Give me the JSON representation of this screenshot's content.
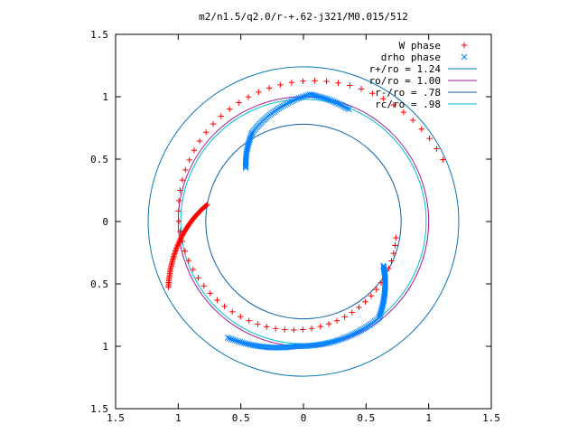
{
  "chart_data": {
    "type": "scatter",
    "title": "m2/n1.5/q2.0/r-+.62-j321/M0.015/512",
    "xlim": [
      -1.5,
      1.5
    ],
    "ylim": [
      -1.5,
      1.5
    ],
    "x_ticks": [
      -1.5,
      -1,
      -0.5,
      0,
      0.5,
      1,
      1.5
    ],
    "y_ticks": [
      -1.5,
      -1,
      -0.5,
      0,
      0.5,
      1,
      1.5
    ],
    "x_tick_labels": [
      "1.5",
      "1",
      "0.5",
      "0",
      "0.5",
      "1",
      "1.5"
    ],
    "y_tick_labels": [
      "1.5",
      "1",
      "0.5",
      "0",
      "0.5",
      "1",
      "1.5"
    ],
    "grid": false,
    "legend_position": "top-right",
    "series": [
      {
        "name": "W phase",
        "kind": "points",
        "marker": "plus",
        "color": "#ff0000",
        "arcs": [
          {
            "r_start": 0.75,
            "r_end": 1.22,
            "theta_start": 350,
            "theta_end": 24,
            "n": 70
          },
          {
            "r_start": 0.78,
            "r_end": 1.2,
            "theta_start": 170,
            "theta_end": 206,
            "n": 70
          }
        ]
      },
      {
        "name": "drho phase",
        "kind": "points",
        "marker": "cross",
        "color": "#0080ff",
        "arcs": [
          {
            "r_start": 0.63,
            "r_end": 0.82,
            "theta_start": 137,
            "theta_end": 120,
            "n": 25
          },
          {
            "r_start": 0.82,
            "r_end": 1.02,
            "theta_start": 120,
            "theta_end": 87,
            "n": 40
          },
          {
            "r_start": 1.02,
            "r_end": 0.97,
            "theta_start": 87,
            "theta_end": 68,
            "n": 25
          },
          {
            "r_start": 0.73,
            "r_end": 0.98,
            "theta_start": -29,
            "theta_end": -52,
            "n": 40
          },
          {
            "r_start": 0.98,
            "r_end": 1.0,
            "theta_start": -52,
            "theta_end": -93,
            "n": 50
          },
          {
            "r_start": 1.0,
            "r_end": 1.11,
            "theta_start": -93,
            "theta_end": -123,
            "n": 40
          }
        ]
      },
      {
        "name": "r+/ro = 1.24",
        "kind": "circle",
        "radius": 1.24,
        "color": "#0a76b6"
      },
      {
        "name": "ro/ro = 1.00",
        "kind": "circle",
        "radius": 1.0,
        "color": "#9b1a9b"
      },
      {
        "name": "r-/ro = .78",
        "kind": "circle",
        "radius": 0.78,
        "color": "#0a5ea8"
      },
      {
        "name": "rc/ro = .98",
        "kind": "circle",
        "radius": 0.98,
        "color": "#00c0d0"
      }
    ]
  }
}
